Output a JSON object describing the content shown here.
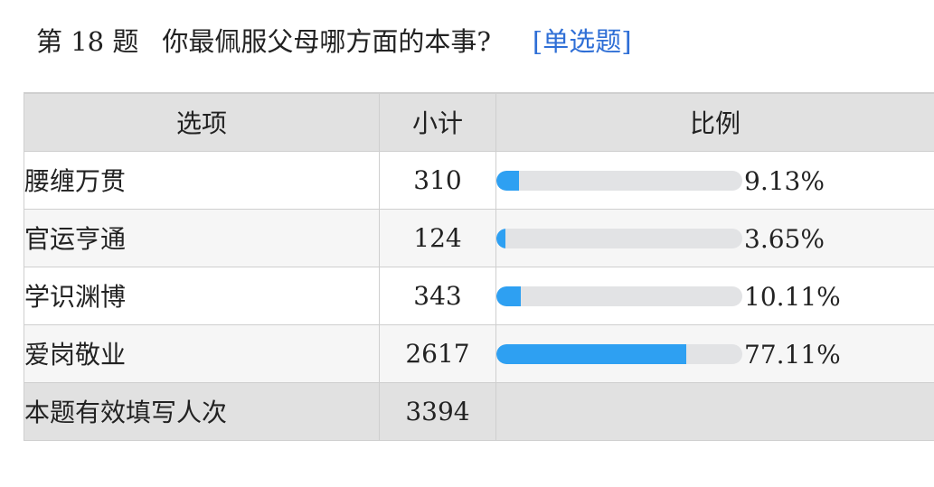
{
  "question": {
    "number_label": "第 18 题",
    "text": "你最佩服父母哪方面的本事?",
    "type_label": "[单选题]"
  },
  "table": {
    "headers": {
      "option": "选项",
      "count": "小计",
      "ratio": "比例"
    },
    "rows": [
      {
        "option": "腰缠万贯",
        "count": "310",
        "percent_label": "9.13%",
        "percent": 9.13
      },
      {
        "option": "官运亨通",
        "count": "124",
        "percent_label": "3.65%",
        "percent": 3.65
      },
      {
        "option": "学识渊博",
        "count": "343",
        "percent_label": "10.11%",
        "percent": 10.11
      },
      {
        "option": "爱岗敬业",
        "count": "2617",
        "percent_label": "77.11%",
        "percent": 77.11
      }
    ],
    "total": {
      "label": "本题有效填写人次",
      "count": "3394"
    }
  },
  "colors": {
    "bar_fill": "#2ea0f2",
    "bar_track": "#e2e3e5",
    "question_type": "#2f6fd6"
  }
}
